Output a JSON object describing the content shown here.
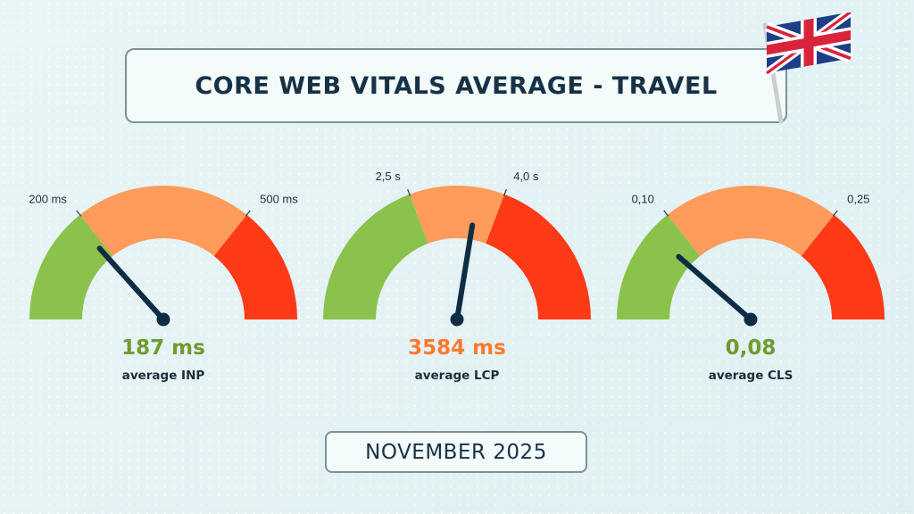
{
  "title": "CORE WEB VITALS AVERAGE - TRAVEL",
  "date": "NOVEMBER 2025",
  "flag_icon": "uk-flag-icon",
  "colors": {
    "good": "#8bc24c",
    "needs_improvement": "#ff9c5c",
    "poor": "#ff3a17",
    "needle": "#0f2c45",
    "title_text": "#163246"
  },
  "chart_data": [
    {
      "type": "gauge",
      "metric": "INP",
      "value": 187,
      "value_text": "187 ms",
      "value_color": "#6f9c2e",
      "label": "average INP",
      "thresholds": [
        200,
        500
      ],
      "threshold_labels": [
        "200 ms",
        "500 ms"
      ],
      "range": [
        0,
        700
      ]
    },
    {
      "type": "gauge",
      "metric": "LCP",
      "value": 3584,
      "value_text": "3584 ms",
      "value_color": "#ff7a2e",
      "label": "average LCP",
      "thresholds": [
        2500,
        4000
      ],
      "threshold_labels": [
        "2,5 s",
        "4,0 s"
      ],
      "range": [
        0,
        6500
      ]
    },
    {
      "type": "gauge",
      "metric": "CLS",
      "value": 0.08,
      "value_text": "0,08",
      "value_color": "#6f9c2e",
      "label": "average CLS",
      "thresholds": [
        0.1,
        0.25
      ],
      "threshold_labels": [
        "0,10",
        "0,25"
      ],
      "range": [
        0,
        0.35
      ]
    }
  ]
}
